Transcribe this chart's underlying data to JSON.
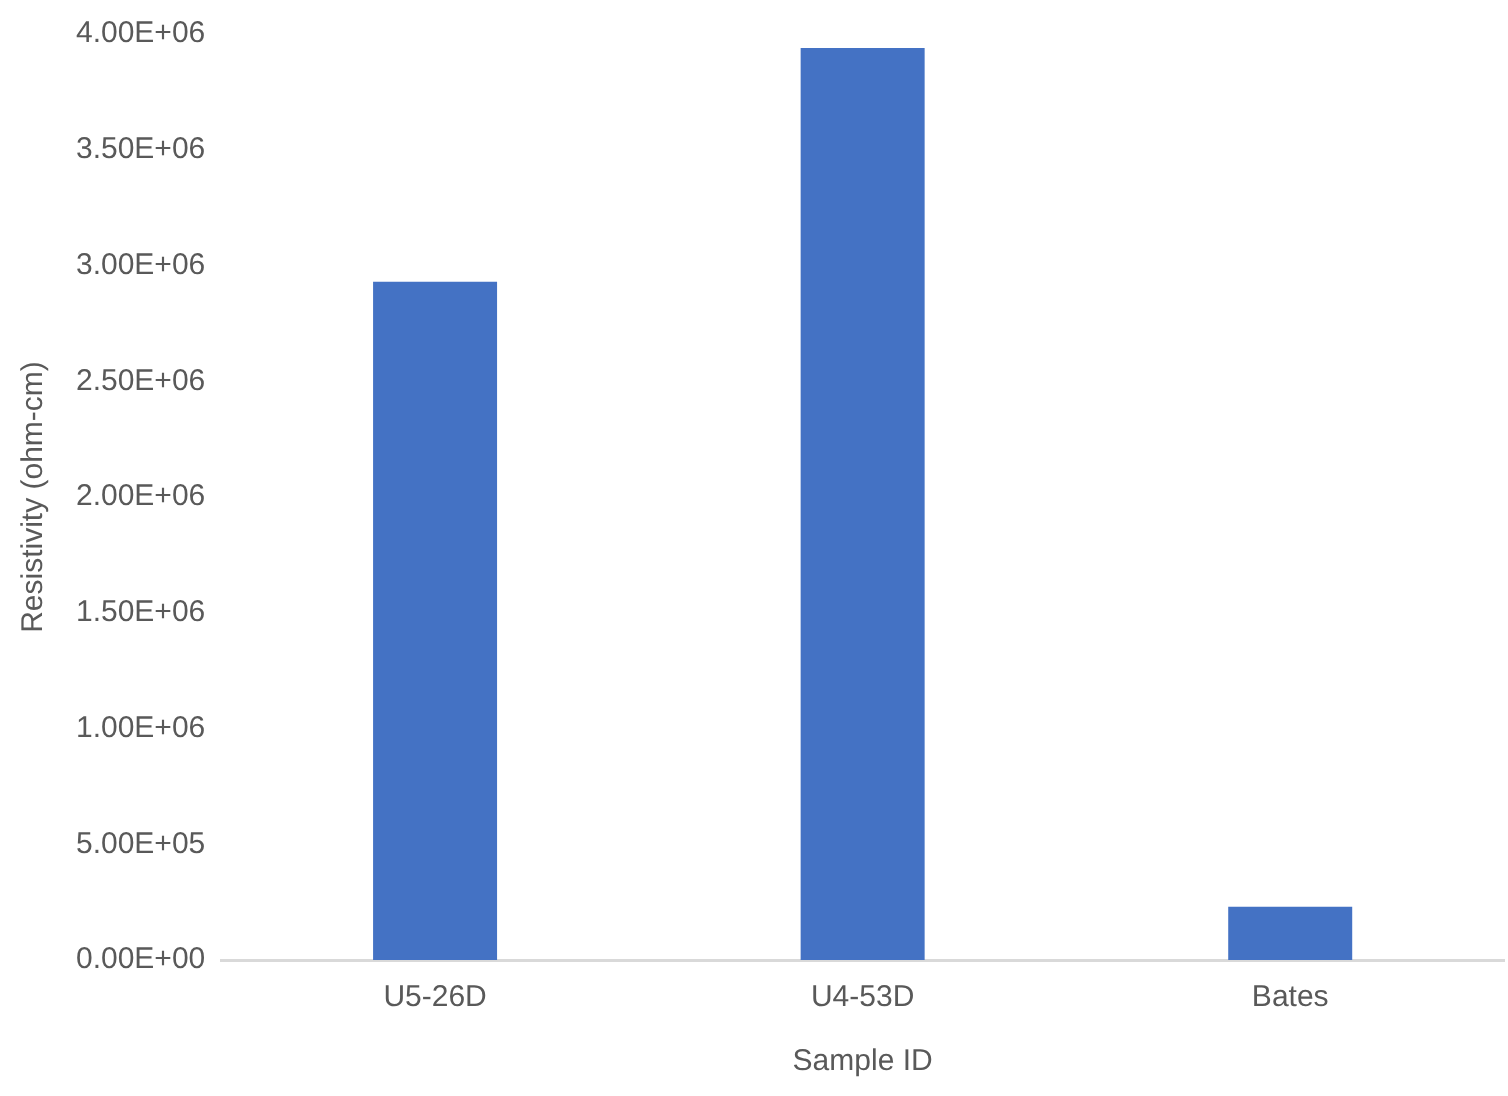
{
  "chart_data": {
    "type": "bar",
    "xlabel": "Sample ID",
    "ylabel": "Resistivity (ohm-cm)",
    "categories": [
      "U5-26D",
      "U4-53D",
      "Bates"
    ],
    "values": [
      2930000,
      3940000,
      230000
    ],
    "color": "#4472c4",
    "ylim": [
      0,
      4000000
    ],
    "yticks": [
      {
        "value": 0,
        "label": "0.00E+00"
      },
      {
        "value": 500000,
        "label": "5.00E+05"
      },
      {
        "value": 1000000,
        "label": "1.00E+06"
      },
      {
        "value": 1500000,
        "label": "1.50E+06"
      },
      {
        "value": 2000000,
        "label": "2.00E+06"
      },
      {
        "value": 2500000,
        "label": "2.50E+06"
      },
      {
        "value": 3000000,
        "label": "3.00E+06"
      },
      {
        "value": 3500000,
        "label": "3.50E+06"
      },
      {
        "value": 4000000,
        "label": "4.00E+06"
      }
    ],
    "grid": false,
    "legend": false
  }
}
